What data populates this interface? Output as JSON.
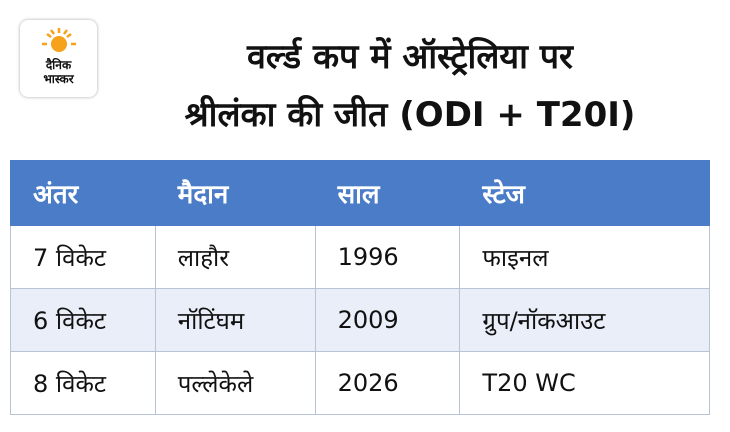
{
  "header": {
    "logo": [
      "दैनिक",
      "भास्कर"
    ],
    "title": [
      "वर्ल्ड कप में ऑस्ट्रेलिया पर",
      "श्रीलंका की जीत (ODI + T20I)"
    ]
  },
  "table": {
    "headers": [
      "अंतर",
      "मैदान",
      "साल",
      "स्टेज"
    ],
    "rows": [
      [
        "7 विकेट",
        "लाहौर",
        "1996",
        "फाइनल"
      ],
      [
        "6 विकेट",
        "नॉटिंघम",
        "2009",
        "ग्रुप/नॉकआउट"
      ],
      [
        "8 विकेट",
        "पल्लेकेले",
        "2026",
        "T20 WC"
      ]
    ]
  }
}
